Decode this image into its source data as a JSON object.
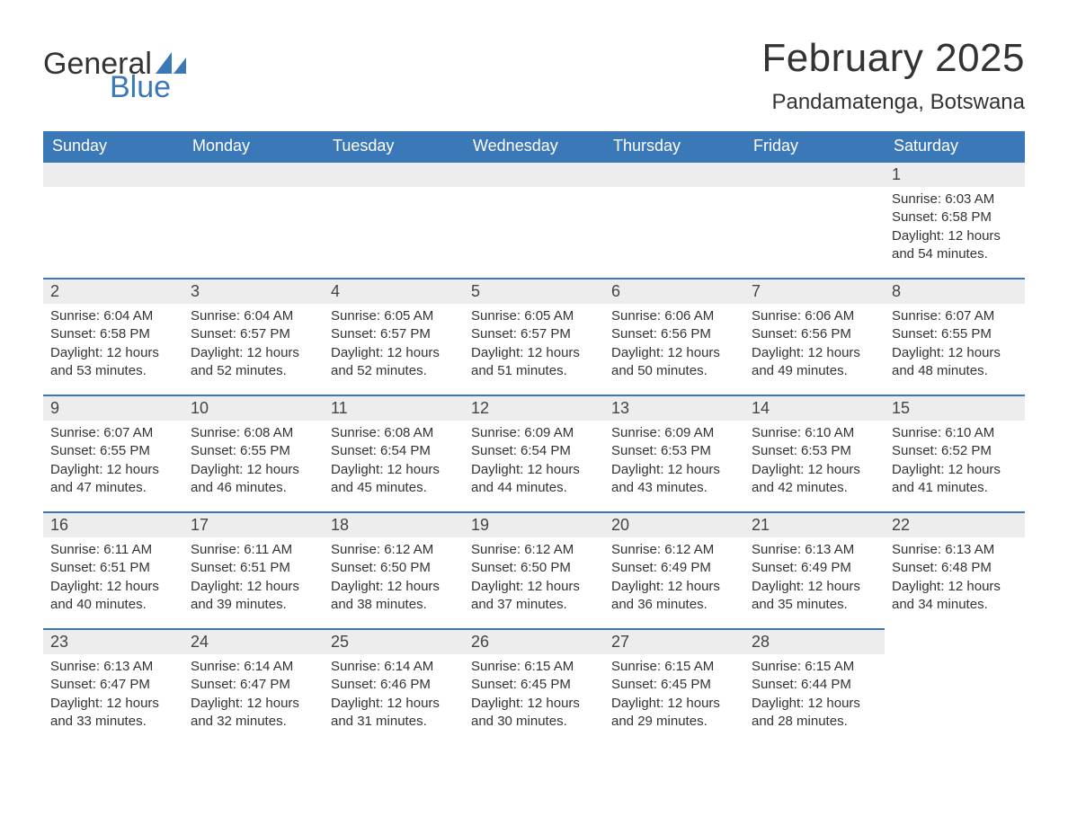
{
  "logo": {
    "word1": "General",
    "word2": "Blue",
    "text_color": "#333333",
    "accent_color": "#3b78b8"
  },
  "header": {
    "month_title": "February 2025",
    "location": "Pandamatenga, Botswana"
  },
  "colors": {
    "header_bg": "#3b78b8",
    "header_text": "#ffffff",
    "daynum_bg": "#ededed",
    "daynum_border": "#3b78b8",
    "body_text": "#333333",
    "page_bg": "#ffffff"
  },
  "day_names": [
    "Sunday",
    "Monday",
    "Tuesday",
    "Wednesday",
    "Thursday",
    "Friday",
    "Saturday"
  ],
  "weeks": [
    [
      {
        "blank": true
      },
      {
        "blank": true
      },
      {
        "blank": true
      },
      {
        "blank": true
      },
      {
        "blank": true
      },
      {
        "blank": true
      },
      {
        "num": "1",
        "sunrise": "Sunrise: 6:03 AM",
        "sunset": "Sunset: 6:58 PM",
        "daylight": "Daylight: 12 hours and 54 minutes."
      }
    ],
    [
      {
        "num": "2",
        "sunrise": "Sunrise: 6:04 AM",
        "sunset": "Sunset: 6:58 PM",
        "daylight": "Daylight: 12 hours and 53 minutes."
      },
      {
        "num": "3",
        "sunrise": "Sunrise: 6:04 AM",
        "sunset": "Sunset: 6:57 PM",
        "daylight": "Daylight: 12 hours and 52 minutes."
      },
      {
        "num": "4",
        "sunrise": "Sunrise: 6:05 AM",
        "sunset": "Sunset: 6:57 PM",
        "daylight": "Daylight: 12 hours and 52 minutes."
      },
      {
        "num": "5",
        "sunrise": "Sunrise: 6:05 AM",
        "sunset": "Sunset: 6:57 PM",
        "daylight": "Daylight: 12 hours and 51 minutes."
      },
      {
        "num": "6",
        "sunrise": "Sunrise: 6:06 AM",
        "sunset": "Sunset: 6:56 PM",
        "daylight": "Daylight: 12 hours and 50 minutes."
      },
      {
        "num": "7",
        "sunrise": "Sunrise: 6:06 AM",
        "sunset": "Sunset: 6:56 PM",
        "daylight": "Daylight: 12 hours and 49 minutes."
      },
      {
        "num": "8",
        "sunrise": "Sunrise: 6:07 AM",
        "sunset": "Sunset: 6:55 PM",
        "daylight": "Daylight: 12 hours and 48 minutes."
      }
    ],
    [
      {
        "num": "9",
        "sunrise": "Sunrise: 6:07 AM",
        "sunset": "Sunset: 6:55 PM",
        "daylight": "Daylight: 12 hours and 47 minutes."
      },
      {
        "num": "10",
        "sunrise": "Sunrise: 6:08 AM",
        "sunset": "Sunset: 6:55 PM",
        "daylight": "Daylight: 12 hours and 46 minutes."
      },
      {
        "num": "11",
        "sunrise": "Sunrise: 6:08 AM",
        "sunset": "Sunset: 6:54 PM",
        "daylight": "Daylight: 12 hours and 45 minutes."
      },
      {
        "num": "12",
        "sunrise": "Sunrise: 6:09 AM",
        "sunset": "Sunset: 6:54 PM",
        "daylight": "Daylight: 12 hours and 44 minutes."
      },
      {
        "num": "13",
        "sunrise": "Sunrise: 6:09 AM",
        "sunset": "Sunset: 6:53 PM",
        "daylight": "Daylight: 12 hours and 43 minutes."
      },
      {
        "num": "14",
        "sunrise": "Sunrise: 6:10 AM",
        "sunset": "Sunset: 6:53 PM",
        "daylight": "Daylight: 12 hours and 42 minutes."
      },
      {
        "num": "15",
        "sunrise": "Sunrise: 6:10 AM",
        "sunset": "Sunset: 6:52 PM",
        "daylight": "Daylight: 12 hours and 41 minutes."
      }
    ],
    [
      {
        "num": "16",
        "sunrise": "Sunrise: 6:11 AM",
        "sunset": "Sunset: 6:51 PM",
        "daylight": "Daylight: 12 hours and 40 minutes."
      },
      {
        "num": "17",
        "sunrise": "Sunrise: 6:11 AM",
        "sunset": "Sunset: 6:51 PM",
        "daylight": "Daylight: 12 hours and 39 minutes."
      },
      {
        "num": "18",
        "sunrise": "Sunrise: 6:12 AM",
        "sunset": "Sunset: 6:50 PM",
        "daylight": "Daylight: 12 hours and 38 minutes."
      },
      {
        "num": "19",
        "sunrise": "Sunrise: 6:12 AM",
        "sunset": "Sunset: 6:50 PM",
        "daylight": "Daylight: 12 hours and 37 minutes."
      },
      {
        "num": "20",
        "sunrise": "Sunrise: 6:12 AM",
        "sunset": "Sunset: 6:49 PM",
        "daylight": "Daylight: 12 hours and 36 minutes."
      },
      {
        "num": "21",
        "sunrise": "Sunrise: 6:13 AM",
        "sunset": "Sunset: 6:49 PM",
        "daylight": "Daylight: 12 hours and 35 minutes."
      },
      {
        "num": "22",
        "sunrise": "Sunrise: 6:13 AM",
        "sunset": "Sunset: 6:48 PM",
        "daylight": "Daylight: 12 hours and 34 minutes."
      }
    ],
    [
      {
        "num": "23",
        "sunrise": "Sunrise: 6:13 AM",
        "sunset": "Sunset: 6:47 PM",
        "daylight": "Daylight: 12 hours and 33 minutes."
      },
      {
        "num": "24",
        "sunrise": "Sunrise: 6:14 AM",
        "sunset": "Sunset: 6:47 PM",
        "daylight": "Daylight: 12 hours and 32 minutes."
      },
      {
        "num": "25",
        "sunrise": "Sunrise: 6:14 AM",
        "sunset": "Sunset: 6:46 PM",
        "daylight": "Daylight: 12 hours and 31 minutes."
      },
      {
        "num": "26",
        "sunrise": "Sunrise: 6:15 AM",
        "sunset": "Sunset: 6:45 PM",
        "daylight": "Daylight: 12 hours and 30 minutes."
      },
      {
        "num": "27",
        "sunrise": "Sunrise: 6:15 AM",
        "sunset": "Sunset: 6:45 PM",
        "daylight": "Daylight: 12 hours and 29 minutes."
      },
      {
        "num": "28",
        "sunrise": "Sunrise: 6:15 AM",
        "sunset": "Sunset: 6:44 PM",
        "daylight": "Daylight: 12 hours and 28 minutes."
      },
      {
        "blank_noBar": true
      }
    ]
  ]
}
